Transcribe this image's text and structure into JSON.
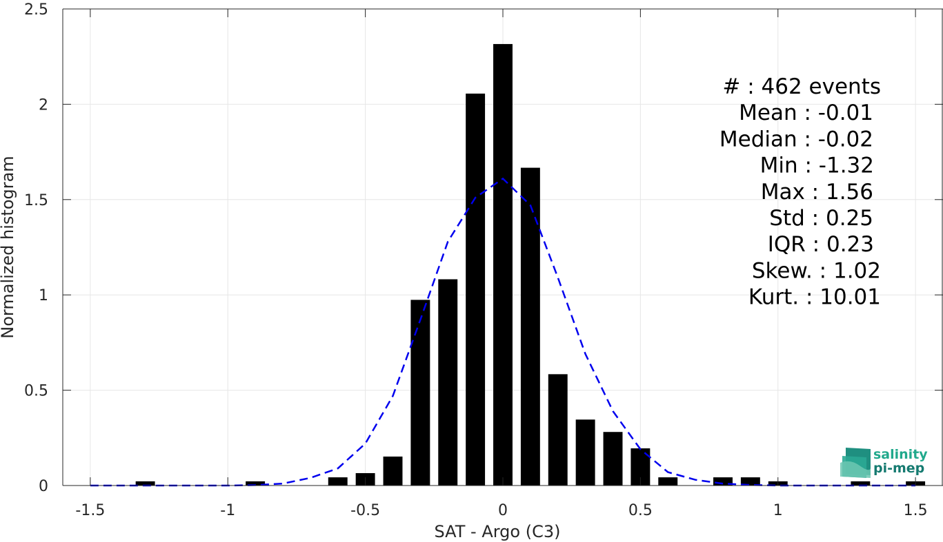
{
  "chart_data": {
    "type": "bar",
    "xlabel": "SAT - Argo (C3)",
    "ylabel": "Normalized histogram",
    "xlim": [
      -1.6,
      1.6
    ],
    "ylim": [
      0,
      2.5
    ],
    "xticks": [
      -1.5,
      -1,
      -0.5,
      0,
      0.5,
      1,
      1.5
    ],
    "xtick_labels": [
      "-1.5",
      "-1",
      "-0.5",
      "0",
      "0.5",
      "1",
      "1.5"
    ],
    "yticks": [
      0,
      0.5,
      1,
      1.5,
      2,
      2.5
    ],
    "ytick_labels": [
      "0",
      "0.5",
      "1",
      "1.5",
      "2",
      "2.5"
    ],
    "grid": true,
    "bar_width": 0.07,
    "bars": {
      "x": [
        -1.3,
        -0.9,
        -0.6,
        -0.5,
        -0.4,
        -0.3,
        -0.2,
        -0.1,
        0.0,
        0.1,
        0.2,
        0.3,
        0.4,
        0.5,
        0.6,
        0.8,
        0.9,
        1.0,
        1.3,
        1.5
      ],
      "values": [
        0.022,
        0.022,
        0.043,
        0.065,
        0.152,
        0.974,
        1.082,
        2.056,
        2.316,
        1.667,
        0.584,
        0.346,
        0.281,
        0.195,
        0.043,
        0.043,
        0.043,
        0.022,
        0.022,
        0.022
      ],
      "color": "#000000"
    },
    "fit_curve": {
      "style": "dashed",
      "color": "#0000ee",
      "x": [
        -1.5,
        -1.4,
        -1.3,
        -1.2,
        -1.1,
        -1.0,
        -0.9,
        -0.8,
        -0.7,
        -0.6,
        -0.5,
        -0.4,
        -0.3,
        -0.2,
        -0.1,
        0.0,
        0.1,
        0.2,
        0.3,
        0.4,
        0.5,
        0.6,
        0.7,
        0.8,
        0.9,
        1.0,
        1.1,
        1.2,
        1.3,
        1.4,
        1.5
      ],
      "y": [
        0.0,
        0.0,
        0.0,
        0.0,
        0.0,
        0.0,
        0.002,
        0.01,
        0.04,
        0.09,
        0.22,
        0.47,
        0.87,
        1.28,
        1.51,
        1.61,
        1.47,
        1.09,
        0.69,
        0.39,
        0.19,
        0.07,
        0.03,
        0.01,
        0.003,
        0.0,
        0.0,
        0.0,
        0.0,
        0.0,
        0.0
      ]
    },
    "annotations": [
      {
        "label": "#",
        "value": ": 462 events"
      },
      {
        "label": "Mean",
        "value": ": -0.01"
      },
      {
        "label": "Median",
        "value": ": -0.02"
      },
      {
        "label": "Min",
        "value": ": -1.32"
      },
      {
        "label": "Max",
        "value": ": 1.56"
      },
      {
        "label": "Std",
        "value": ": 0.25"
      },
      {
        "label": "IQR",
        "value": ": 0.23"
      },
      {
        "label": "Skew.",
        "value": ": 1.02"
      },
      {
        "label": "Kurt.",
        "value": ": 10.01"
      }
    ]
  },
  "logo": {
    "line1": "salinity",
    "line2": "pi-mep",
    "color_line1": "#21a98c",
    "color_line2": "#157a70"
  },
  "colors": {
    "axis": "#262626",
    "grid": "#e6e6e6",
    "background": "#ffffff"
  }
}
